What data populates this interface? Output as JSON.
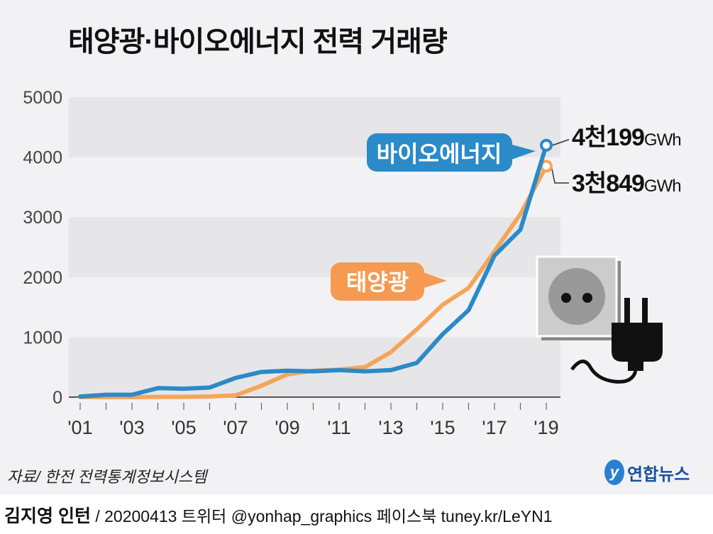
{
  "title": "태양광·바이오에너지 전력 거래량",
  "source": "자료/ 한전 전력통계정보시스템",
  "logo": "연합뉴스",
  "credit": {
    "author": "김지영 인턴",
    "rest": "/ 20200413 트위터 @yonhap_graphics  페이스북 tuney.kr/LeYN1"
  },
  "chart_data": {
    "type": "line",
    "title": "태양광·바이오에너지 전력 거래량",
    "x": [
      "'01",
      "'02",
      "'03",
      "'04",
      "'05",
      "'06",
      "'07",
      "'08",
      "'09",
      "'10",
      "'11",
      "'12",
      "'13",
      "'14",
      "'15",
      "'16",
      "'17",
      "'18",
      "'19"
    ],
    "x_tick_labels": [
      "'01",
      "'03",
      "'05",
      "'07",
      "'09",
      "'11",
      "'13",
      "'15",
      "'17",
      "'19"
    ],
    "y_ticks": [
      "0",
      "1000",
      "2000",
      "3000",
      "4000",
      "5000"
    ],
    "ylim": [
      0,
      5000
    ],
    "unit": "GWh",
    "series": [
      {
        "name": "바이오에너지",
        "color": "#2b8ac8",
        "values": [
          10,
          40,
          40,
          150,
          140,
          160,
          320,
          420,
          440,
          430,
          450,
          430,
          450,
          570,
          1050,
          1450,
          2360,
          2790,
          4199
        ],
        "end_label": {
          "big": "4천199",
          "unit": "GWh"
        }
      },
      {
        "name": "태양광",
        "color": "#f5a55a",
        "values": [
          0,
          0,
          0,
          5,
          5,
          10,
          30,
          190,
          380,
          440,
          460,
          500,
          750,
          1130,
          1540,
          1820,
          2430,
          3050,
          3849
        ],
        "end_label": {
          "big": "3천849",
          "unit": "GWh"
        }
      }
    ]
  }
}
